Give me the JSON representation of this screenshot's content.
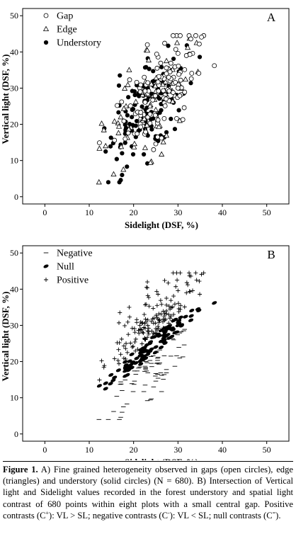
{
  "chart_data": [
    {
      "panel_letter": "A",
      "type": "scatter",
      "xlabel": "Sidelight (DSF, %)",
      "ylabel": "Vertical light (DSF, %)",
      "xlim": [
        -5,
        55
      ],
      "ylim": [
        -2,
        52
      ],
      "xticks": [
        "0",
        "10",
        "20",
        "30",
        "40",
        "50"
      ],
      "yticks": [
        "0",
        "10",
        "20",
        "30",
        "40",
        "50"
      ],
      "grid": false,
      "legend_position": "top-left",
      "series": [
        {
          "name": "Gap",
          "marker": "open-circle",
          "points": []
        },
        {
          "name": "Edge",
          "marker": "open-triangle",
          "points": []
        },
        {
          "name": "Understory",
          "marker": "filled-circle",
          "points": []
        }
      ]
    },
    {
      "panel_letter": "B",
      "type": "scatter",
      "xlabel": "Sidelight (DSF, %)",
      "ylabel": "Vertical light (DSF, %)",
      "xlim": [
        -5,
        55
      ],
      "ylim": [
        -2,
        52
      ],
      "xticks": [
        "0",
        "10",
        "20",
        "30",
        "40",
        "50"
      ],
      "yticks": [
        "0",
        "10",
        "20",
        "30",
        "40",
        "50"
      ],
      "grid": false,
      "legend_position": "top-left",
      "series": [
        {
          "name": "Negative",
          "marker": "dash",
          "points": []
        },
        {
          "name": "Null",
          "marker": "filled-ellipse",
          "points": []
        },
        {
          "name": "Positive",
          "marker": "plus",
          "points": []
        }
      ]
    }
  ],
  "caption": {
    "label": "Figure 1.",
    "parts": [
      {
        "t": " A)  Fine grained heterogeneity observed in gaps (open circles), edge (triangles) and understory (solid circles) (N = 680). B) Intersection of Vertical light and Sidelight values recorded in the forest understory and spatial light contrast of 680 points within eight plots with a small central gap. Positive contrasts (C"
      },
      {
        "sup": "+"
      },
      {
        "t": "): VL > SL; negative contrasts (C"
      },
      {
        "sup": "-"
      },
      {
        "t": "): VL < SL; null contrasts (C"
      },
      {
        "sup": "="
      },
      {
        "t": ")."
      }
    ]
  }
}
